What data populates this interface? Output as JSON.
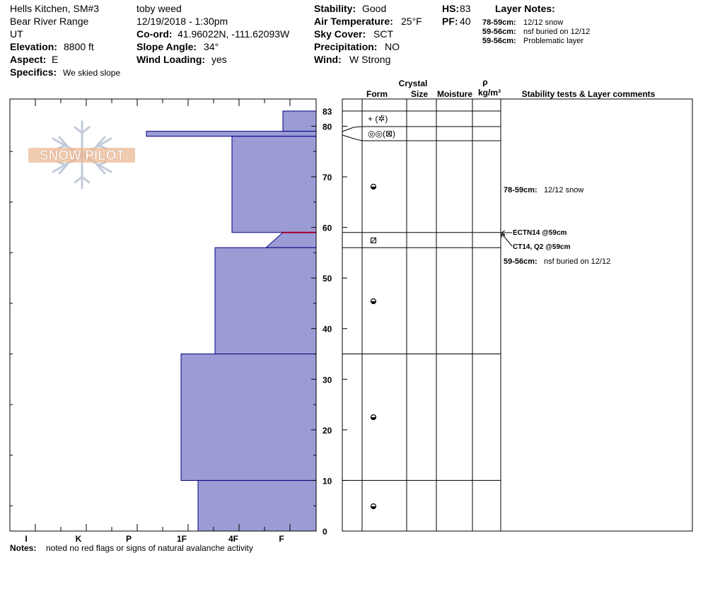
{
  "header": {
    "location": "Hells Kitchen, SM#3",
    "range": "Bear River Range",
    "state": "UT",
    "elevation_label": "Elevation:",
    "elevation_value": "8800 ft",
    "aspect_label": "Aspect:",
    "aspect_value": "E",
    "specifics_label": "Specifics:",
    "specifics_value": "We skied slope",
    "observer": "toby weed",
    "datetime": "12/19/2018 - 1:30pm",
    "coord_label": "Co-ord:",
    "coord_value": "41.96022N, -111.62093W",
    "slope_label": "Slope Angle:",
    "slope_value": "34°",
    "wind_loading_label": "Wind Loading:",
    "wind_loading_value": "yes",
    "stability_label": "Stability:",
    "stability_value": "Good",
    "air_temp_label": "Air Temperature:",
    "air_temp_value": "25°F",
    "sky_label": "Sky Cover:",
    "sky_value": "SCT",
    "precip_label": "Precipitation:",
    "precip_value": "NO",
    "wind_label": "Wind:",
    "wind_value": "W Strong",
    "hs_label": "HS:",
    "hs_value": "83",
    "pf_label": "PF:",
    "pf_value": "40",
    "layer_notes_title": "Layer Notes:",
    "layer_notes": [
      {
        "range": "78-59cm:",
        "text": "12/12 snow"
      },
      {
        "range": "59-56cm:",
        "text": "nsf buried on 12/12"
      },
      {
        "range": "59-56cm:",
        "text": "Problematic layer"
      }
    ]
  },
  "logo": {
    "text": "SNOW PILOT"
  },
  "columns": {
    "crystal": "Crystal",
    "form": "Form",
    "size": "Size",
    "moisture": "Moisture",
    "rho": "ρ",
    "density_unit": "kg/m³",
    "stability": "Stability tests & Layer comments"
  },
  "chart_data": {
    "type": "snow-profile",
    "hardness_scale": [
      "I",
      "K",
      "P",
      "1F",
      "4F",
      "F"
    ],
    "depth_ticks": [
      "0",
      "10",
      "20",
      "30",
      "40",
      "50",
      "60",
      "70",
      "80",
      "83"
    ],
    "depth_range": [
      0,
      83
    ],
    "hardness_layers": [
      {
        "top": 83,
        "bottom": 79,
        "hardness": "F"
      },
      {
        "top": 79,
        "bottom": 78,
        "hardness": "P+"
      },
      {
        "top": 78,
        "bottom": 59,
        "hardness": "4F"
      },
      {
        "top": 59,
        "bottom": 56,
        "hardness": "F-"
      },
      {
        "top": 56,
        "bottom": 35,
        "hardness": "4F-"
      },
      {
        "top": 35,
        "bottom": 10,
        "hardness": "1F"
      },
      {
        "top": 10,
        "bottom": 0,
        "hardness": "1F-"
      }
    ],
    "layer_boundaries": [
      83,
      80,
      79,
      78,
      59,
      56,
      35,
      10,
      0
    ],
    "weak_layer_depth": 59,
    "crystal_forms": [
      {
        "depth": 81.5,
        "symbol": "+ (✲̈)"
      },
      {
        "depth": 78.5,
        "symbol": "◎◎(⊠)"
      },
      {
        "depth": 68,
        "symbol": "●"
      },
      {
        "depth": 57.5,
        "symbol": "⊠"
      },
      {
        "depth": 45.5,
        "symbol": "●"
      },
      {
        "depth": 22.5,
        "symbol": "●"
      },
      {
        "depth": 5,
        "symbol": "●"
      }
    ],
    "layer_comments": [
      {
        "depth": 68,
        "range": "78-59cm:",
        "text": "12/12 snow"
      },
      {
        "depth": 53.5,
        "range": "59-56cm:",
        "text": "nsf buried on 12/12"
      }
    ],
    "stability_tests": [
      {
        "depth": 59,
        "label": "ECTN14 @59cm"
      },
      {
        "depth": 59,
        "label": "CT14, Q2 @59cm"
      }
    ]
  },
  "notes": {
    "label": "Notes:",
    "text": "noted no red flags or signs of natural avalanche activity"
  }
}
